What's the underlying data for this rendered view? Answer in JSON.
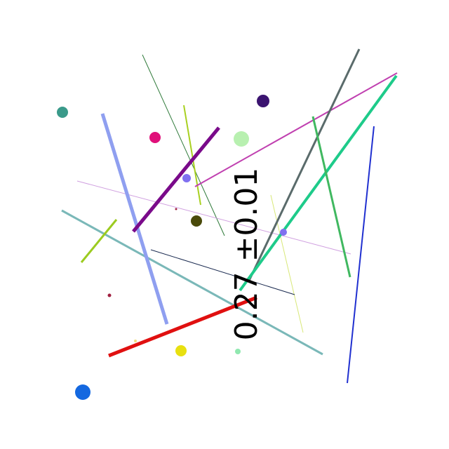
{
  "measurement": {
    "text": "0.27 ±0.01",
    "color": "#000000",
    "orientation": "vertical"
  },
  "background": "#ffffff",
  "palette": {
    "gray_line": "#5a6b6b",
    "green_line": "#1ecb8a",
    "magenta_line": "#c040b0",
    "blue_line": "#2030d0",
    "periwinkle_line": "#8f9ff0",
    "teal_line": "#7ab8b8",
    "red_line": "#e01010",
    "purple_line": "#7a0a8a",
    "lime_line": "#9ccb20",
    "leaf_line": "#40b860",
    "dot_teal": "#3a9a8a",
    "dot_indigo": "#3b1470",
    "dot_pink": "#e0107a",
    "dot_mint": "#b8f0b0",
    "dot_violet": "#8070f0",
    "dot_olive": "#4a4a0a",
    "dot_yellow": "#e8e010",
    "dot_blue": "#1468e0"
  }
}
